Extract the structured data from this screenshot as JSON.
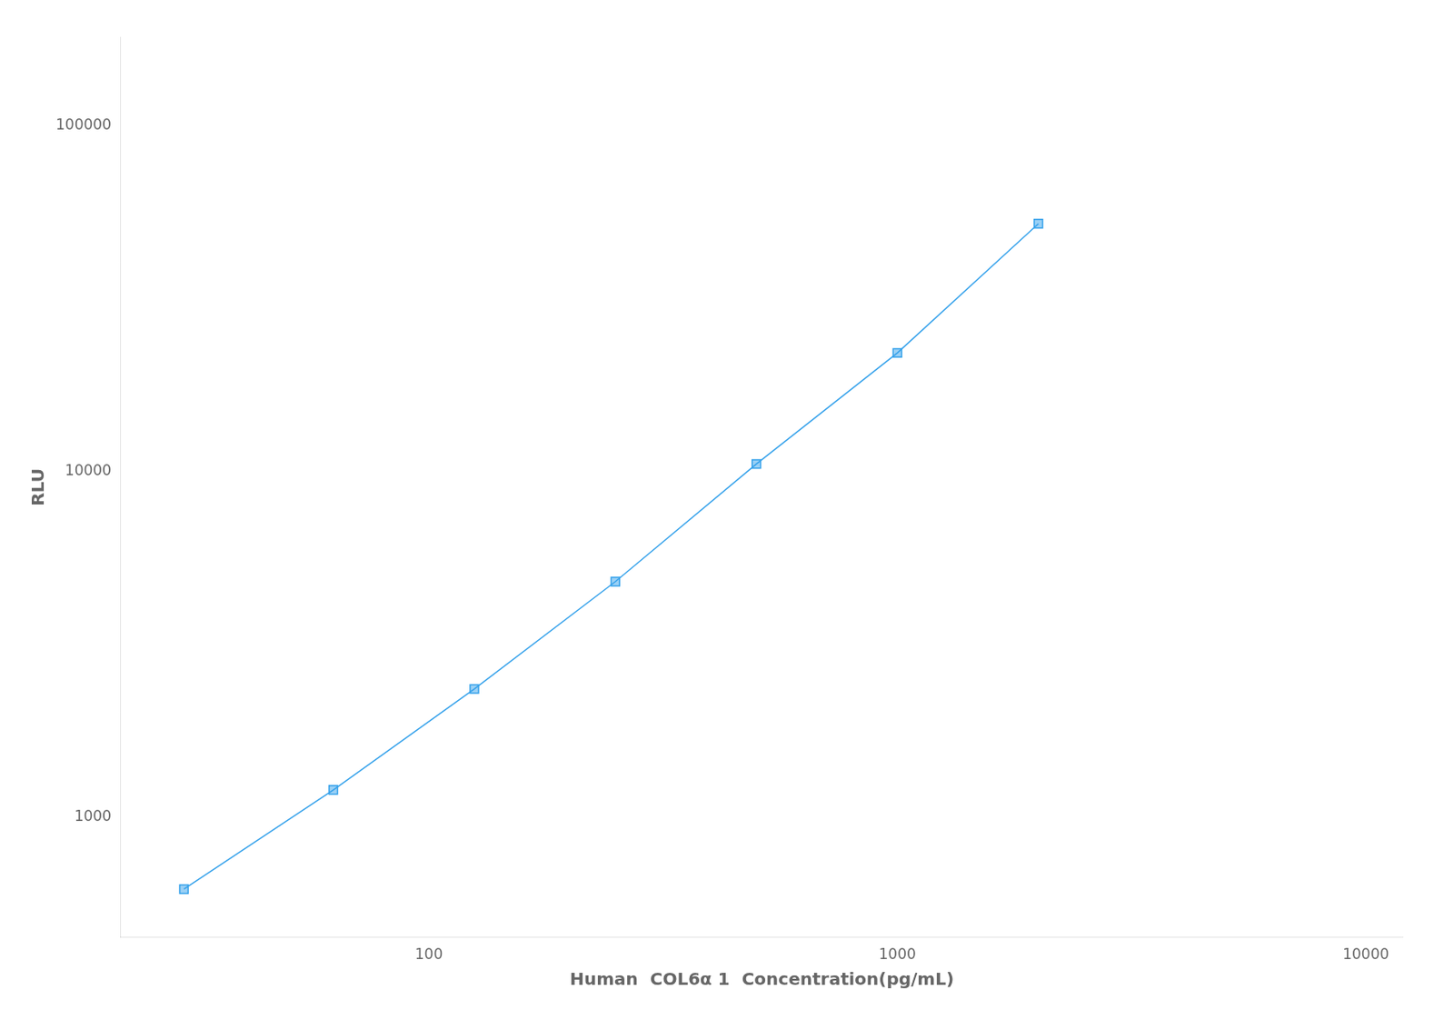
{
  "chart_data": {
    "type": "line",
    "xlabel": "Human  COL6α 1  Concentration(pg/mL)",
    "ylabel": "RLU",
    "x": [
      30,
      62.5,
      125,
      250,
      500,
      1000,
      2000
    ],
    "values": [
      620,
      1200,
      2350,
      4800,
      10500,
      22000,
      52000
    ],
    "xlim": [
      22,
      12000
    ],
    "ylim": [
      450,
      180000
    ],
    "xticks": [
      100,
      1000,
      10000
    ],
    "yticks": [
      1000,
      10000,
      100000
    ],
    "log": true,
    "grid": false,
    "marker": "square",
    "line_style": "solid"
  }
}
